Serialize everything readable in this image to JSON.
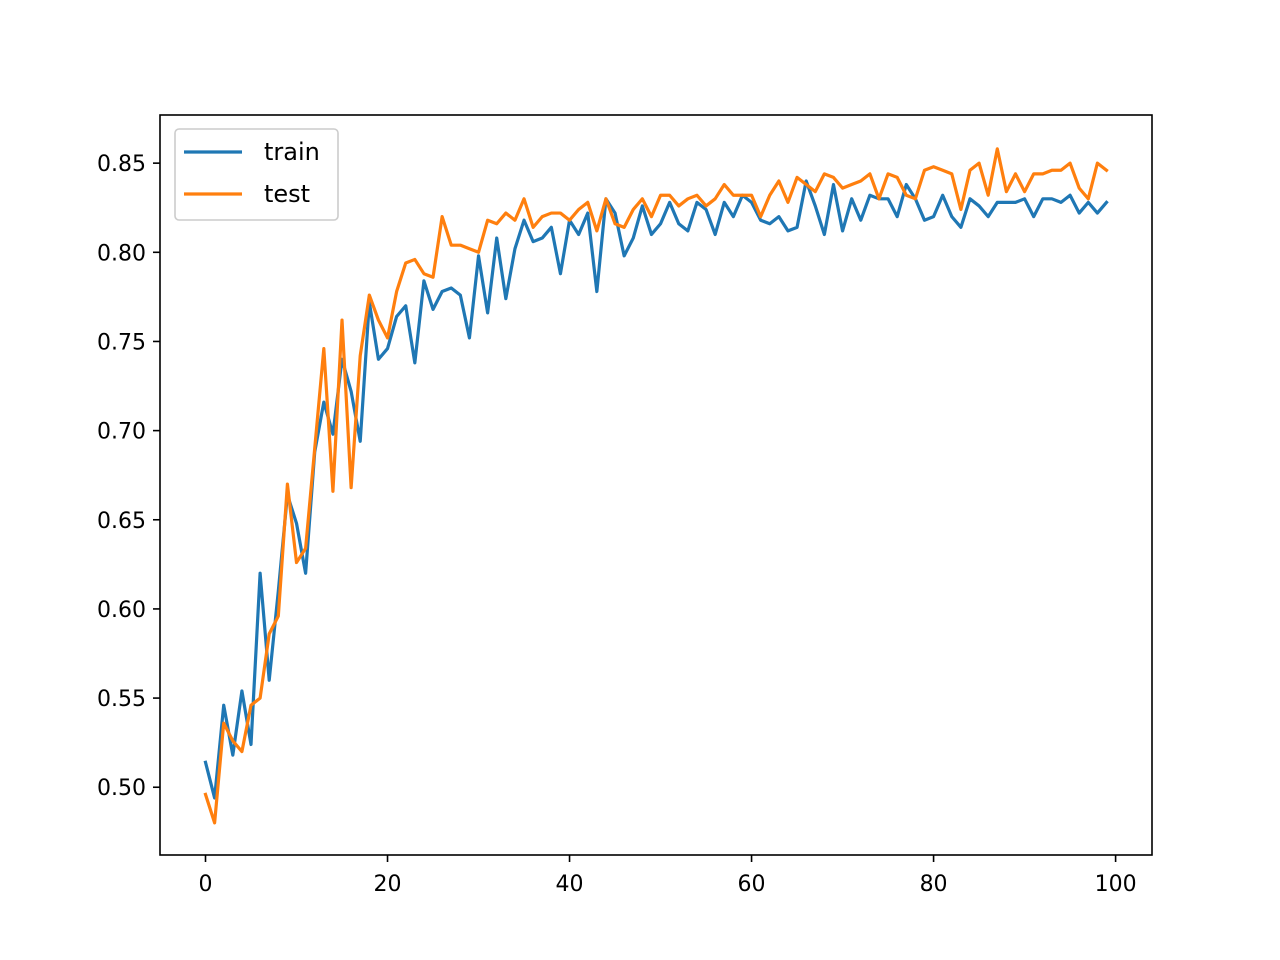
{
  "chart_data": {
    "type": "line",
    "title": "",
    "xlabel": "",
    "ylabel": "",
    "xlim": [
      -5,
      104
    ],
    "ylim": [
      0.462,
      0.877
    ],
    "xticks": [
      0,
      20,
      40,
      60,
      80,
      100
    ],
    "yticks": [
      0.5,
      0.55,
      0.6,
      0.65,
      0.7,
      0.75,
      0.8,
      0.85
    ],
    "xtick_labels": [
      "0",
      "20",
      "40",
      "60",
      "80",
      "100"
    ],
    "ytick_labels": [
      "0.50",
      "0.55",
      "0.60",
      "0.65",
      "0.70",
      "0.75",
      "0.80",
      "0.85"
    ],
    "grid": false,
    "legend": "top-left",
    "series": [
      {
        "name": "train",
        "color": "#1f77b4",
        "values": [
          0.514,
          0.494,
          0.546,
          0.518,
          0.554,
          0.524,
          0.62,
          0.56,
          0.61,
          0.664,
          0.648,
          0.62,
          0.688,
          0.716,
          0.698,
          0.74,
          0.722,
          0.694,
          0.772,
          0.74,
          0.746,
          0.764,
          0.77,
          0.738,
          0.784,
          0.768,
          0.778,
          0.78,
          0.776,
          0.752,
          0.798,
          0.766,
          0.808,
          0.774,
          0.802,
          0.818,
          0.806,
          0.808,
          0.814,
          0.788,
          0.818,
          0.81,
          0.822,
          0.778,
          0.83,
          0.822,
          0.798,
          0.808,
          0.826,
          0.81,
          0.816,
          0.828,
          0.816,
          0.812,
          0.828,
          0.824,
          0.81,
          0.828,
          0.82,
          0.832,
          0.828,
          0.818,
          0.816,
          0.82,
          0.812,
          0.814,
          0.84,
          0.826,
          0.81,
          0.838,
          0.812,
          0.83,
          0.818,
          0.832,
          0.83,
          0.83,
          0.82,
          0.838,
          0.83,
          0.818,
          0.82,
          0.832,
          0.82,
          0.814,
          0.83,
          0.826,
          0.82,
          0.828,
          0.828,
          0.828,
          0.83,
          0.82,
          0.83,
          0.83,
          0.828,
          0.832,
          0.822,
          0.828,
          0.822,
          0.828
        ]
      },
      {
        "name": "test",
        "color": "#ff7f0e",
        "values": [
          0.496,
          0.48,
          0.536,
          0.526,
          0.52,
          0.546,
          0.55,
          0.586,
          0.596,
          0.67,
          0.626,
          0.634,
          0.69,
          0.746,
          0.666,
          0.762,
          0.668,
          0.742,
          0.776,
          0.762,
          0.752,
          0.778,
          0.794,
          0.796,
          0.788,
          0.786,
          0.82,
          0.804,
          0.804,
          0.802,
          0.8,
          0.818,
          0.816,
          0.822,
          0.818,
          0.83,
          0.814,
          0.82,
          0.822,
          0.822,
          0.818,
          0.824,
          0.828,
          0.812,
          0.83,
          0.816,
          0.814,
          0.824,
          0.83,
          0.82,
          0.832,
          0.832,
          0.826,
          0.83,
          0.832,
          0.826,
          0.83,
          0.838,
          0.832,
          0.832,
          0.832,
          0.82,
          0.832,
          0.84,
          0.828,
          0.842,
          0.838,
          0.834,
          0.844,
          0.842,
          0.836,
          0.838,
          0.84,
          0.844,
          0.83,
          0.844,
          0.842,
          0.832,
          0.83,
          0.846,
          0.848,
          0.846,
          0.844,
          0.824,
          0.846,
          0.85,
          0.832,
          0.858,
          0.834,
          0.844,
          0.834,
          0.844,
          0.844,
          0.846,
          0.846,
          0.85,
          0.836,
          0.83,
          0.85,
          0.846
        ]
      }
    ]
  }
}
